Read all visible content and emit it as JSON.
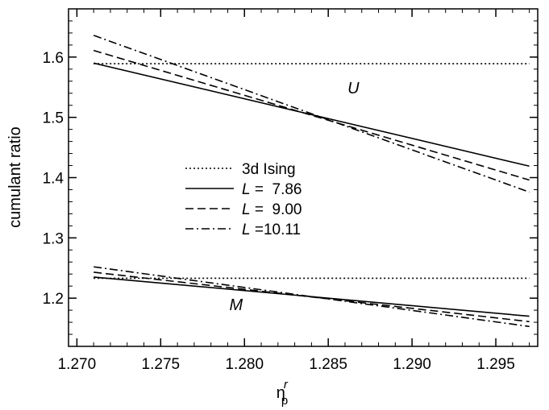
{
  "chart_data": {
    "type": "line",
    "xlabel": "η",
    "xlabel_sup": "r",
    "xlabel_sub": "p",
    "ylabel": "cumulant ratio",
    "xlim": [
      1.2695,
      1.2975
    ],
    "ylim": [
      1.12,
      1.68
    ],
    "x_ticks": [
      1.27,
      1.275,
      1.28,
      1.285,
      1.29,
      1.295
    ],
    "x_tick_labels": [
      "1.270",
      "1.275",
      "1.280",
      "1.285",
      "1.290",
      "1.295"
    ],
    "y_ticks": [
      1.2,
      1.3,
      1.4,
      1.5,
      1.6
    ],
    "y_tick_labels": [
      "1.2",
      "1.3",
      "1.4",
      "1.5",
      "1.6"
    ],
    "grid": false,
    "legend_position": "center-left",
    "annotations": [
      {
        "text": "U",
        "x": 1.2865,
        "y": 1.54
      },
      {
        "text": "M",
        "x": 1.2795,
        "y": 1.18
      }
    ],
    "legend": [
      {
        "label_italic": "",
        "label_rest": "3d Ising",
        "style": "dotted"
      },
      {
        "label_italic": "L",
        "label_rest": " =  7.86",
        "style": "solid"
      },
      {
        "label_italic": "L",
        "label_rest": " =  9.00",
        "style": "dashed"
      },
      {
        "label_italic": "L",
        "label_rest": " =10.11",
        "style": "dashdot"
      }
    ],
    "series": [
      {
        "legend_index": 0,
        "group": "U",
        "x": [
          1.271,
          1.297
        ],
        "y": [
          1.589,
          1.589
        ]
      },
      {
        "legend_index": 1,
        "group": "U",
        "x": [
          1.271,
          1.297
        ],
        "y": [
          1.59,
          1.419
        ]
      },
      {
        "legend_index": 2,
        "group": "U",
        "x": [
          1.271,
          1.297
        ],
        "y": [
          1.611,
          1.396
        ]
      },
      {
        "legend_index": 3,
        "group": "U",
        "x": [
          1.271,
          1.297
        ],
        "y": [
          1.636,
          1.376
        ]
      },
      {
        "legend_index": 0,
        "group": "M",
        "x": [
          1.271,
          1.297
        ],
        "y": [
          1.233,
          1.233
        ]
      },
      {
        "legend_index": 1,
        "group": "M",
        "x": [
          1.271,
          1.297
        ],
        "y": [
          1.235,
          1.17
        ]
      },
      {
        "legend_index": 2,
        "group": "M",
        "x": [
          1.271,
          1.297
        ],
        "y": [
          1.243,
          1.161
        ]
      },
      {
        "legend_index": 3,
        "group": "M",
        "x": [
          1.271,
          1.297
        ],
        "y": [
          1.252,
          1.153
        ]
      }
    ]
  }
}
